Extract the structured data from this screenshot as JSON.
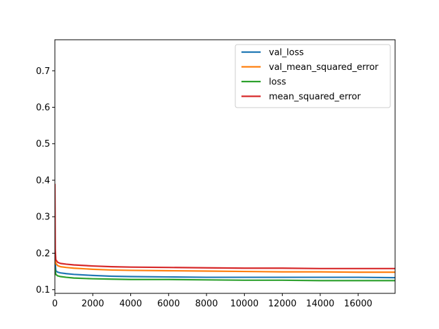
{
  "chart_data": {
    "type": "line",
    "title": "",
    "xlabel": "",
    "ylabel": "",
    "xlim": [
      0,
      17950
    ],
    "ylim": [
      0.09,
      0.785
    ],
    "xticks": [
      0,
      2000,
      4000,
      6000,
      8000,
      10000,
      12000,
      14000,
      16000
    ],
    "xtick_labels": [
      "0",
      "2000",
      "4000",
      "6000",
      "8000",
      "10000",
      "12000",
      "14000",
      "16000"
    ],
    "yticks": [
      0.1,
      0.2,
      0.3,
      0.4,
      0.5,
      0.6,
      0.7
    ],
    "ytick_labels": [
      "0.1",
      "0.2",
      "0.3",
      "0.4",
      "0.5",
      "0.6",
      "0.7"
    ],
    "grid": false,
    "legend_position": "upper-right",
    "series": [
      {
        "name": "val_loss",
        "color": "#1f77b4",
        "x": [
          0,
          50,
          150,
          300,
          600,
          1000,
          2000,
          3000,
          4000,
          6000,
          8000,
          10000,
          12000,
          14000,
          16000,
          17950
        ],
        "y": [
          0.19,
          0.152,
          0.148,
          0.146,
          0.144,
          0.142,
          0.139,
          0.137,
          0.136,
          0.135,
          0.134,
          0.134,
          0.134,
          0.134,
          0.134,
          0.133
        ]
      },
      {
        "name": "val_mean_squared_error",
        "color": "#ff7f0e",
        "x": [
          0,
          50,
          150,
          300,
          600,
          1000,
          2000,
          3000,
          4000,
          6000,
          8000,
          10000,
          12000,
          14000,
          16000,
          17950
        ],
        "y": [
          0.2,
          0.172,
          0.166,
          0.163,
          0.161,
          0.159,
          0.156,
          0.154,
          0.153,
          0.152,
          0.151,
          0.15,
          0.149,
          0.149,
          0.148,
          0.148
        ]
      },
      {
        "name": "loss",
        "color": "#2ca02c",
        "x": [
          0,
          50,
          150,
          300,
          600,
          1000,
          2000,
          3000,
          4000,
          6000,
          8000,
          10000,
          12000,
          14000,
          16000,
          17950
        ],
        "y": [
          0.16,
          0.142,
          0.138,
          0.136,
          0.134,
          0.132,
          0.13,
          0.129,
          0.128,
          0.128,
          0.127,
          0.126,
          0.126,
          0.125,
          0.125,
          0.125
        ]
      },
      {
        "name": "mean_squared_error",
        "color": "#d62728",
        "x": [
          0,
          20,
          50,
          150,
          300,
          600,
          1000,
          2000,
          3000,
          4000,
          6000,
          8000,
          10000,
          12000,
          14000,
          16000,
          17950
        ],
        "y": [
          0.39,
          0.21,
          0.182,
          0.175,
          0.172,
          0.17,
          0.168,
          0.165,
          0.163,
          0.162,
          0.161,
          0.16,
          0.159,
          0.159,
          0.158,
          0.158,
          0.158
        ]
      }
    ]
  }
}
